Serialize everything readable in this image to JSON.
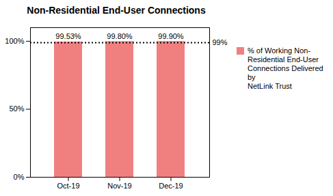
{
  "chart_data": {
    "type": "bar",
    "title": "Non-Residential End-User Connections",
    "categories": [
      "Oct-19",
      "Nov-19",
      "Dec-19"
    ],
    "series": [
      {
        "name": "% of Working Non-\nResidential End-User\nConnections Delivered by\nNetLink Trust",
        "color": "#F08080",
        "values": [
          0.9953,
          0.998,
          0.999
        ],
        "value_labels": [
          "99.53%",
          "99.80%",
          "99.90%"
        ]
      }
    ],
    "data_labels": true,
    "ylim": [
      0,
      1.1
    ],
    "yticks": [
      {
        "value": 0,
        "label": "0%"
      },
      {
        "value": 0.5,
        "label": "50%"
      },
      {
        "value": 1.0,
        "label": "100%"
      }
    ],
    "annotations": [
      {
        "type": "hline",
        "y": 0.99,
        "label": "99%",
        "color": "black",
        "line_style": "dotted"
      }
    ],
    "grid": false,
    "legend": "right"
  }
}
